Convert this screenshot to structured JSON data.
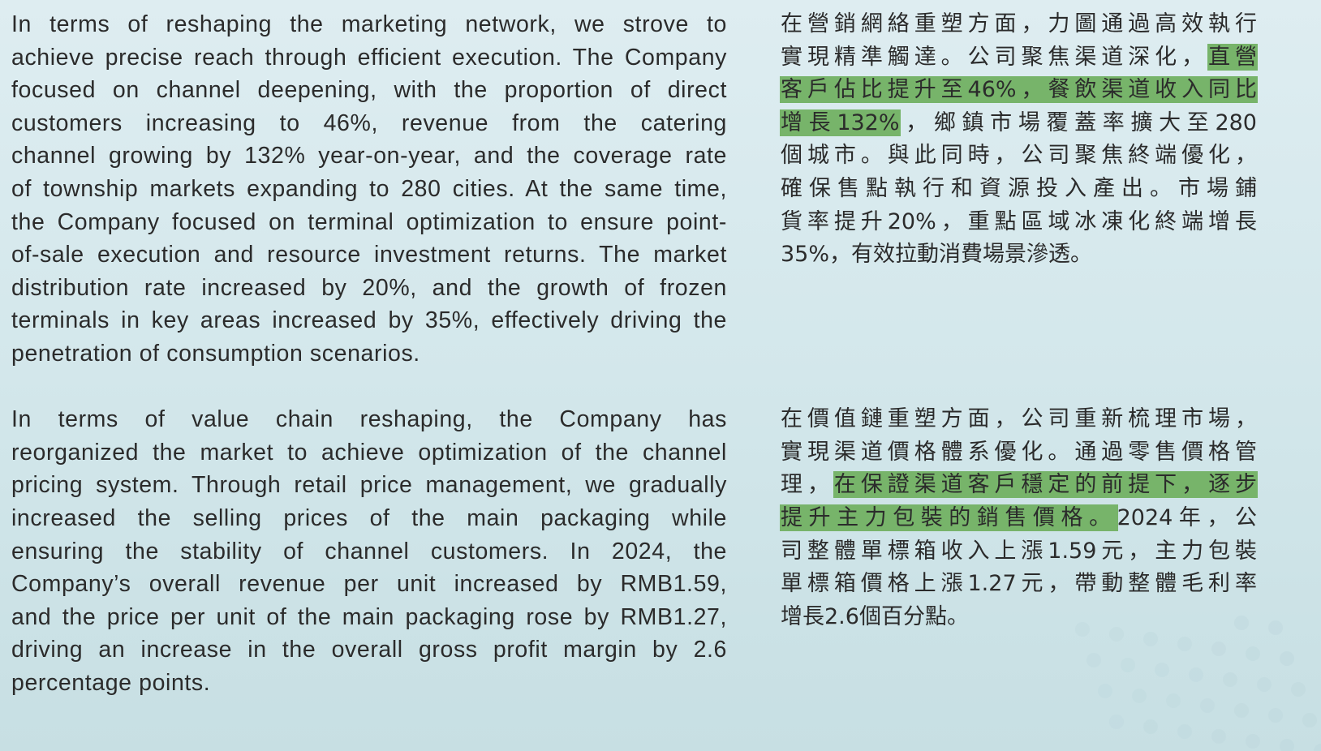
{
  "english": {
    "paragraphs": [
      [
        "In terms of reshaping the marketing network, we strove to",
        "achieve precise reach through efficient execution. The Company",
        "focused on channel deepening, with the proportion of direct",
        "customers increasing to 46%, revenue from the catering",
        "channel growing by 132% year-on-year, and the coverage rate",
        "of township markets expanding to 280 cities. At the same time,",
        "the Company focused on terminal optimization to ensure point-",
        "of-sale execution and resource investment returns. The market",
        "distribution rate increased by 20%, and the growth of frozen",
        "terminals in key areas increased by 35%, effectively driving the",
        "penetration of consumption scenarios."
      ],
      [
        "In terms of value chain reshaping, the Company has",
        "reorganized the market to achieve optimization of the channel",
        "pricing system. Through retail price management, we gradually",
        "increased the selling prices of the main packaging while",
        "ensuring the stability of channel customers. In 2024, the",
        "Company’s overall revenue per unit increased by RMB1.59,",
        "and the price per unit of the main packaging rose by RMB1.27,",
        "driving an increase in the overall gross profit margin by 2.6",
        "percentage points."
      ]
    ]
  },
  "chinese": {
    "highlight_color": "#77b46a",
    "paragraphs": [
      [
        [
          {
            "text": "在營銷網絡重塑方面，力圖通過高效執行",
            "hl": false
          }
        ],
        [
          {
            "text": "實現精準觸達。公司聚焦渠道深化，",
            "hl": false
          },
          {
            "text": "直營",
            "hl": true
          }
        ],
        [
          {
            "text": "客戶佔比提升至46%，餐飲渠道收入同比",
            "hl": true
          }
        ],
        [
          {
            "text": "增長132%",
            "hl": true
          },
          {
            "text": "，鄉鎮市場覆蓋率擴大至280",
            "hl": false
          }
        ],
        [
          {
            "text": "個城市。與此同時，公司聚焦終端優化，",
            "hl": false
          }
        ],
        [
          {
            "text": "確保售點執行和資源投入產出。市場鋪",
            "hl": false
          }
        ],
        [
          {
            "text": "貨率提升20%，重點區域冰凍化終端增長",
            "hl": false
          }
        ],
        [
          {
            "text": "35%，有效拉動消費場景滲透。",
            "hl": false
          }
        ]
      ],
      [
        [
          {
            "text": "在價值鏈重塑方面，公司重新梳理市場，",
            "hl": false
          }
        ],
        [
          {
            "text": "實現渠道價格體系優化。通過零售價格管",
            "hl": false
          }
        ],
        [
          {
            "text": "理，",
            "hl": false
          },
          {
            "text": "在保證渠道客戶穩定的前提下，逐步",
            "hl": true
          }
        ],
        [
          {
            "text": "提升主力包裝的銷售價格。",
            "hl": true
          },
          {
            "text": "2024年，公",
            "hl": false
          }
        ],
        [
          {
            "text": "司整體單標箱收入上漲1.59元，主力包裝",
            "hl": false
          }
        ],
        [
          {
            "text": "單標箱價格上漲1.27元，帶動整體毛利率",
            "hl": false
          }
        ],
        [
          {
            "text": "增長2.6個百分點。",
            "hl": false
          }
        ]
      ]
    ]
  }
}
